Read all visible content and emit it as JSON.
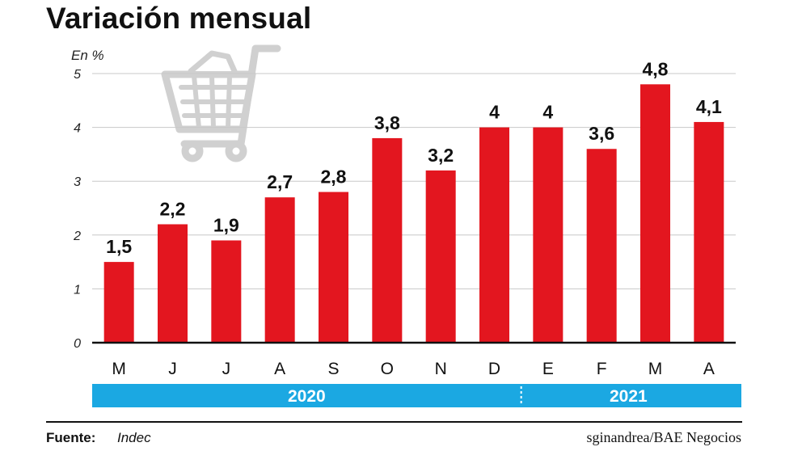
{
  "chart_data": {
    "type": "bar",
    "title": "Variación mensual",
    "ylabel": "En %",
    "ylim": [
      0,
      5
    ],
    "yticks": [
      "0",
      "1",
      "2",
      "3",
      "4",
      "5"
    ],
    "grid": true,
    "categories": [
      "M",
      "J",
      "J",
      "A",
      "S",
      "O",
      "N",
      "D",
      "E",
      "F",
      "M",
      "A"
    ],
    "values": [
      1.5,
      2.2,
      1.9,
      2.7,
      2.8,
      3.8,
      3.2,
      4,
      4,
      3.6,
      4.8,
      4.1
    ],
    "data_labels": [
      "1,5",
      "2,2",
      "1,9",
      "2,7",
      "2,8",
      "3,8",
      "3,2",
      "4",
      "4",
      "3,6",
      "4,8",
      "4,1"
    ],
    "year_groups": [
      {
        "label": "2020",
        "months": 8
      },
      {
        "label": "2021",
        "months": 4
      }
    ],
    "colors": {
      "bar": "#e3161f",
      "year_band": "#1ba8e2",
      "grid": "#c8c8c8",
      "axis": "#111111",
      "cart": "#d0d0d0"
    }
  },
  "source": {
    "key": "Fuente:",
    "value": "Indec"
  },
  "credit": "sginandrea/BAE Negocios",
  "decorative_icon": "shopping-cart-icon"
}
